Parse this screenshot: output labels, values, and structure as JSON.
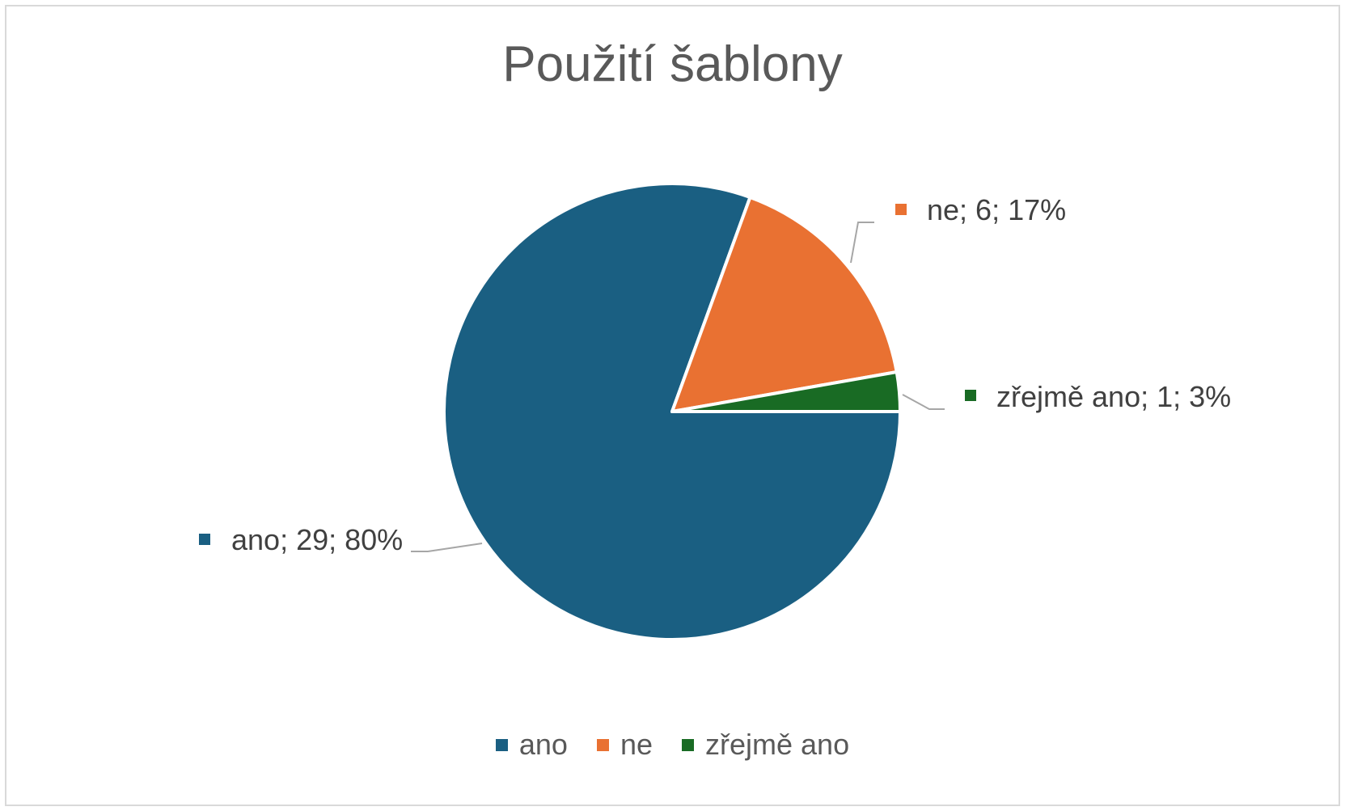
{
  "chart_data": {
    "type": "pie",
    "title": "Použití šablony",
    "slices": [
      {
        "name": "ano",
        "value": 29,
        "percent": 80,
        "label": "ano; 29; 80%",
        "color": "#1a5f82"
      },
      {
        "name": "ne",
        "value": 6,
        "percent": 17,
        "label": "ne; 6; 17%",
        "color": "#e97132"
      },
      {
        "name": "zřejmě ano",
        "value": 1,
        "percent": 3,
        "label": "zřejmě ano; 1; 3%",
        "color": "#196b24"
      }
    ],
    "legend_position": "bottom",
    "legend": [
      "ano",
      "ne",
      "zřejmě ano"
    ]
  }
}
